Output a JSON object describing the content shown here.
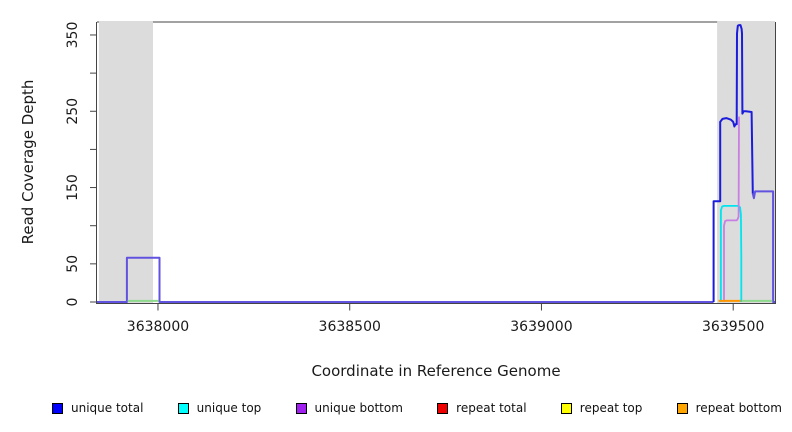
{
  "figure": {
    "ylabel": "Read Coverage Depth",
    "xlabel": "Coordinate in Reference Genome"
  },
  "legend": {
    "items": [
      {
        "label": "unique total",
        "color": "#0000ff"
      },
      {
        "label": "unique top",
        "color": "#00ffff"
      },
      {
        "label": "unique bottom",
        "color": "#a020f0"
      },
      {
        "label": "repeat total",
        "color": "#ee0000"
      },
      {
        "label": "repeat top",
        "color": "#ffff00"
      },
      {
        "label": "repeat bottom",
        "color": "#ffa500"
      }
    ]
  },
  "chart_data": {
    "type": "line",
    "title": "",
    "xlabel": "Coordinate in Reference Genome",
    "ylabel": "Read Coverage Depth",
    "xlim": [
      3637841,
      3639609
    ],
    "ylim": [
      0,
      367
    ],
    "x_ticks": [
      3638000,
      3638500,
      3639000,
      3639500
    ],
    "y_ticks": [
      0,
      50,
      100,
      150,
      200,
      250,
      300,
      350
    ],
    "y_ticks_labeled": [
      0,
      50,
      150,
      250,
      350
    ],
    "grid": false,
    "legend_position": "bottom",
    "shaded_regions": [
      {
        "name": "left-gray-band",
        "from": 3637846,
        "to": 3637987,
        "color": "#dcdcdc"
      },
      {
        "name": "right-gray-band",
        "from": 3639458,
        "to": 3639609,
        "color": "#dcdcdc"
      }
    ],
    "series": [
      {
        "name": "unique total (left peak and baseline)",
        "color": "#6152e0",
        "width": 2,
        "points": [
          [
            3637841,
            0
          ],
          [
            3637919,
            0
          ],
          [
            3637919,
            58
          ],
          [
            3638004,
            58
          ],
          [
            3638004,
            0
          ],
          [
            3639449,
            0
          ]
        ]
      },
      {
        "name": "unique total (right cluster)",
        "color": "#1c1cdc",
        "width": 2,
        "points": [
          [
            3639449,
            0
          ],
          [
            3639449,
            132
          ],
          [
            3639466,
            132
          ],
          [
            3639466,
            236
          ],
          [
            3639472,
            240
          ],
          [
            3639482,
            241
          ],
          [
            3639494,
            239
          ],
          [
            3639500,
            236
          ],
          [
            3639503,
            230
          ],
          [
            3639506,
            233
          ],
          [
            3639509,
            233
          ],
          [
            3639510,
            352
          ],
          [
            3639512,
            362
          ],
          [
            3639515,
            363
          ],
          [
            3639519,
            363
          ],
          [
            3639522,
            358
          ],
          [
            3639523,
            352
          ],
          [
            3639524,
            247
          ],
          [
            3639527,
            250
          ],
          [
            3639533,
            250
          ],
          [
            3639548,
            249
          ],
          [
            3639551,
            142
          ]
        ]
      },
      {
        "name": "unique total + unique bottom overlap (right step)",
        "color": "#6152e0",
        "width": 2,
        "points": [
          [
            3639551,
            142
          ],
          [
            3639554,
            136
          ],
          [
            3639557,
            145
          ],
          [
            3639604,
            145
          ],
          [
            3639604,
            0
          ],
          [
            3639609,
            0
          ]
        ]
      },
      {
        "name": "unique top",
        "color": "#00e5ee",
        "width": 1.8,
        "points": [
          [
            3639468,
            0
          ],
          [
            3639468,
            120
          ],
          [
            3639471,
            125
          ],
          [
            3639475,
            126
          ],
          [
            3639514,
            126
          ],
          [
            3639518,
            124
          ],
          [
            3639520,
            115
          ],
          [
            3639521,
            60
          ],
          [
            3639521,
            0
          ]
        ]
      },
      {
        "name": "unique bottom",
        "color": "#c77fe2",
        "width": 1.8,
        "points": [
          [
            3639476,
            0
          ],
          [
            3639476,
            100
          ],
          [
            3639479,
            106
          ],
          [
            3639483,
            107
          ],
          [
            3639509,
            107
          ],
          [
            3639512,
            109
          ],
          [
            3639514,
            112
          ],
          [
            3639515,
            243
          ]
        ]
      },
      {
        "name": "repeat bottom",
        "color": "#ff9800",
        "width": 2,
        "points": [
          [
            3639462,
            1.5
          ],
          [
            3639520,
            1.5
          ]
        ]
      },
      {
        "name": "repeat top (left segment)",
        "color": "#8fd98f",
        "width": 2,
        "points": [
          [
            3637921,
            1.5
          ],
          [
            3638002,
            1.5
          ]
        ]
      },
      {
        "name": "repeat top (right segment)",
        "color": "#8fd98f",
        "width": 2,
        "points": [
          [
            3639523,
            1.5
          ],
          [
            3639602,
            1.5
          ]
        ]
      }
    ]
  }
}
